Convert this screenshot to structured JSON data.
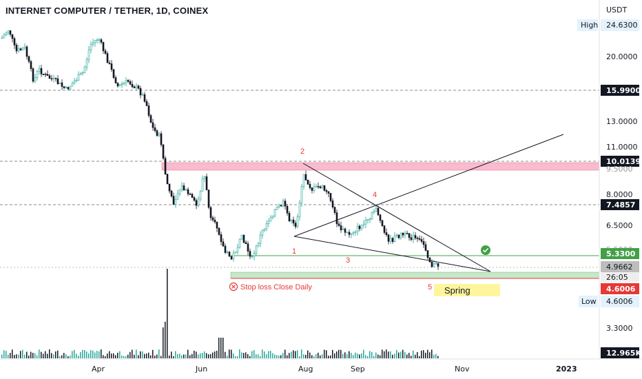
{
  "chart_data": {
    "type": "candlestick",
    "title": "INTERNET COMPUTER / TETHER, 1D, COINEX",
    "currency": "USDT",
    "x_labels": [
      "Apr",
      "Jun",
      "Aug",
      "Sep",
      "Nov",
      "2023"
    ],
    "y_ticks": [
      "24.6300",
      "20.0000",
      "15.9900",
      "13.0000",
      "11.0000",
      "10.0139",
      "9.5000",
      "8.0000",
      "7.4857",
      "6.5000",
      "5.5000",
      "5.3300",
      "4.9662",
      "26:05",
      "4.6006",
      "3.3000",
      "12.965K"
    ],
    "y_scale": "log",
    "high_label": "High",
    "high_value": "24.6300",
    "low_label": "Low",
    "low_value": "4.6006",
    "price_tags": [
      {
        "value": "15.9900",
        "color": "#131722"
      },
      {
        "value": "10.0139",
        "color": "#131722"
      },
      {
        "value": "7.4857",
        "color": "#131722"
      },
      {
        "value": "5.3300",
        "color": "#43a047"
      },
      {
        "value": "4.9662",
        "color": "#9e9e9e"
      },
      {
        "value": "26:05",
        "color": "#ffffff"
      },
      {
        "value": "4.6006",
        "color": "#e53935"
      },
      {
        "value": "12.965K",
        "color": "#131722"
      }
    ],
    "wave_labels": [
      "1",
      "2",
      "3",
      "4",
      "5"
    ],
    "annotations": {
      "stop_loss": "Stop loss Close Daily",
      "spring": "Spring"
    },
    "resistance_zone": [
      9.5,
      10.0139
    ],
    "support_zone": [
      4.6006,
      4.8
    ],
    "colors": {
      "up": "#26a69a",
      "down": "#131722",
      "resistance": "#f8bbd0",
      "support": "#c8e6c9",
      "annotation": "#e53935"
    }
  }
}
